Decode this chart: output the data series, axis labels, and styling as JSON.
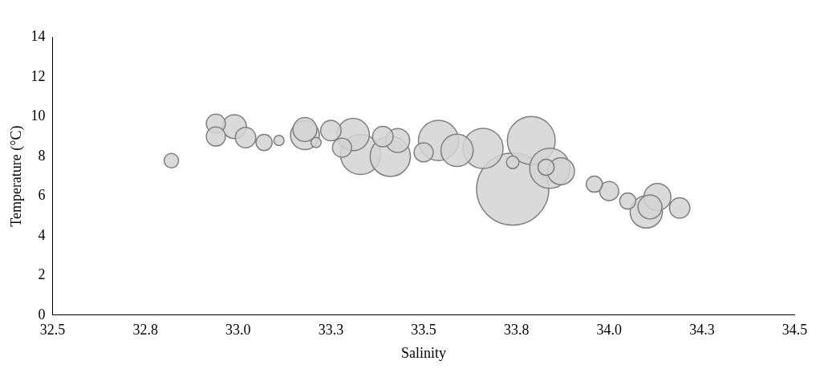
{
  "chart_data": {
    "type": "bubble",
    "xlabel": "Salinity",
    "ylabel": "Temperature (°C)",
    "xlim": [
      32.5,
      34.5
    ],
    "ylim": [
      0,
      14
    ],
    "xticks": [
      32.5,
      {
        "value": 32.75,
        "label": "32.8"
      },
      {
        "value": 33.0,
        "label": "33.0"
      },
      {
        "value": 33.25,
        "label": "33.3"
      },
      33.5,
      {
        "value": 33.75,
        "label": "33.8"
      },
      {
        "value": 34.0,
        "label": "34.0"
      },
      {
        "value": 34.25,
        "label": "34.3"
      },
      34.5
    ],
    "yticks": [
      0,
      2,
      4,
      6,
      8,
      10,
      12,
      14
    ],
    "grid": false,
    "legend": false,
    "relative": false,
    "series": [
      {
        "color": "#d4d4d4",
        "x": [
          33.74,
          33.33,
          33.41,
          33.54,
          33.66,
          33.79,
          33.84,
          34.1,
          33.31,
          33.59,
          33.18,
          33.87,
          34.13,
          32.99,
          33.43,
          33.02,
          32.94,
          32.94,
          33.25,
          33.5,
          34.19,
          33.39,
          33.28,
          34.0,
          34.11,
          33.83,
          33.07,
          33.96,
          34.05,
          32.82,
          33.74,
          33.11,
          33.21,
          33.18
        ],
        "values": [
          6.35,
          8.1,
          8.0,
          8.8,
          8.4,
          8.8,
          7.4,
          5.2,
          9.1,
          8.3,
          9.07,
          7.25,
          5.95,
          9.5,
          8.8,
          8.95,
          9.65,
          9.0,
          9.3,
          8.2,
          5.4,
          9.0,
          8.44,
          6.25,
          5.45,
          7.45,
          8.7,
          6.6,
          5.75,
          7.78,
          7.7,
          8.8,
          8.7,
          9.35
        ],
        "sizes": [
          1,
          0.31,
          0.31,
          0.31,
          0.31,
          0.44,
          0.31,
          0.2,
          0.2,
          0.2,
          0.16,
          0.14,
          0.14,
          0.11,
          0.11,
          0.08,
          0.07,
          0.07,
          0.08,
          0.07,
          0.08,
          0.08,
          0.07,
          0.07,
          0.11,
          0.05,
          0.05,
          0.05,
          0.05,
          0.04,
          0.03,
          0.02,
          0.02,
          0.11
        ]
      }
    ]
  }
}
